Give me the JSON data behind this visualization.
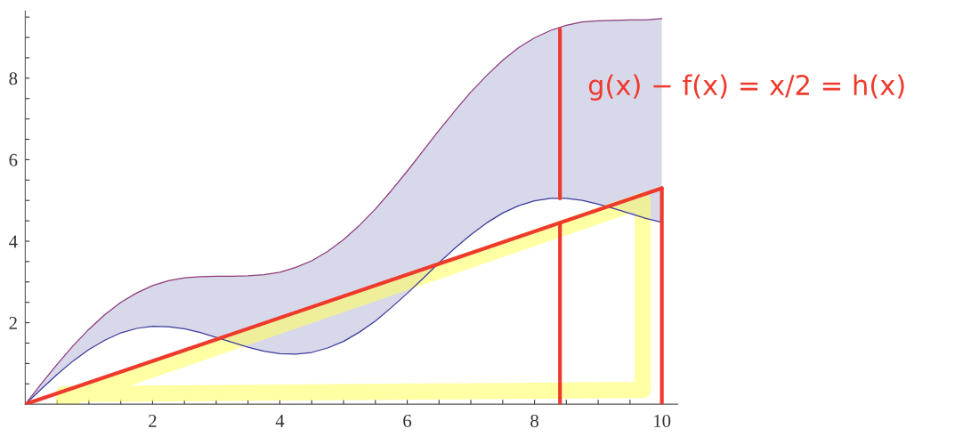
{
  "chart_data": {
    "type": "line",
    "x": [
      0,
      0.25,
      0.5,
      0.75,
      1,
      1.25,
      1.5,
      1.75,
      2,
      2.25,
      2.5,
      2.75,
      3,
      3.25,
      3.5,
      3.75,
      4,
      4.25,
      4.5,
      4.75,
      5,
      5.25,
      5.5,
      5.75,
      6,
      6.25,
      6.5,
      6.75,
      7,
      7.25,
      7.5,
      7.75,
      8,
      8.25,
      8.5,
      8.75,
      9,
      9.25,
      9.5,
      9.75,
      10
    ],
    "series": [
      {
        "type": "line",
        "color": "#3b3b9c",
        "values": [
          0,
          0.37,
          0.73,
          1.06,
          1.34,
          1.57,
          1.75,
          1.86,
          1.91,
          1.9,
          1.85,
          1.76,
          1.64,
          1.52,
          1.4,
          1.3,
          1.24,
          1.23,
          1.27,
          1.38,
          1.54,
          1.77,
          2.04,
          2.37,
          2.72,
          3.09,
          3.47,
          3.83,
          4.16,
          4.45,
          4.69,
          4.87,
          4.99,
          5.05,
          5.05,
          5.0,
          4.91,
          4.8,
          4.68,
          4.56,
          4.46
        ],
        "lower": [
          0,
          0.37,
          0.73,
          1.06,
          1.34,
          1.57,
          1.75,
          1.86,
          1.91,
          1.9,
          1.85,
          1.76,
          1.64,
          1.52,
          1.4,
          1.3,
          1.24,
          1.23,
          1.27,
          1.38,
          1.54,
          1.77,
          2.04,
          2.37,
          2.72,
          3.09,
          3.47,
          3.83,
          4.16,
          4.45,
          4.69,
          4.87,
          4.99,
          5.05,
          5.05,
          5.0,
          4.91,
          4.8,
          4.68,
          4.56,
          4.46
        ],
        "upper": [
          0,
          0.5,
          0.98,
          1.43,
          1.84,
          2.2,
          2.5,
          2.73,
          2.91,
          3.03,
          3.1,
          3.13,
          3.14,
          3.14,
          3.15,
          3.18,
          3.24,
          3.36,
          3.52,
          3.75,
          4.04,
          4.39,
          4.79,
          5.24,
          5.72,
          6.22,
          6.72,
          7.2,
          7.66,
          8.07,
          8.44,
          8.75,
          8.99,
          9.17,
          9.3,
          9.38,
          9.41,
          9.42,
          9.43,
          9.43,
          9.46
        ]
      },
      {
        "type": "line",
        "color": "#8e3b78",
        "values": [
          0,
          0.5,
          0.98,
          1.43,
          1.84,
          2.2,
          2.5,
          2.73,
          2.91,
          3.03,
          3.1,
          3.13,
          3.14,
          3.14,
          3.15,
          3.18,
          3.24,
          3.36,
          3.52,
          3.75,
          4.04,
          4.39,
          4.79,
          5.24,
          5.72,
          6.22,
          6.72,
          7.2,
          7.66,
          8.07,
          8.44,
          8.75,
          8.99,
          9.17,
          9.3,
          9.38,
          9.41,
          9.42,
          9.43,
          9.43,
          9.46
        ]
      },
      {
        "color": "#ffff66",
        "x": [
          0.6,
          9.7,
          9.7,
          0.6
        ],
        "values": [
          0.1,
          5.0,
          0.35,
          0.25
        ]
      },
      {
        "type": "line",
        "color": "#ee3a2c",
        "x": [
          0,
          10
        ],
        "values": [
          0,
          5.3
        ]
      },
      {
        "type": "line",
        "color": "#ee3a2c",
        "x": [
          8.4,
          8.4
        ],
        "values": [
          5.05,
          9.2
        ]
      },
      {
        "type": "line",
        "color": "#ee3a2c",
        "x": [
          8.4,
          8.4
        ],
        "values": [
          0,
          4.45
        ]
      },
      {
        "type": "line",
        "color": "#ee3a2c",
        "x": [
          10,
          10
        ],
        "values": [
          0,
          5.3
        ]
      }
    ],
    "xlim": [
      0,
      10.25
    ],
    "ylim": [
      0,
      9.65
    ],
    "xticks": [
      {
        "value": 0.5,
        "label": null
      },
      {
        "value": 1,
        "label": null
      },
      {
        "value": 1.5,
        "label": null
      },
      2,
      {
        "value": 2.5,
        "label": null
      },
      {
        "value": 3,
        "label": null
      },
      {
        "value": 3.5,
        "label": null
      },
      4,
      {
        "value": 4.5,
        "label": null
      },
      {
        "value": 5,
        "label": null
      },
      {
        "value": 5.5,
        "label": null
      },
      6,
      {
        "value": 6.5,
        "label": null
      },
      {
        "value": 7,
        "label": null
      },
      {
        "value": 7.5,
        "label": null
      },
      8,
      {
        "value": 8.5,
        "label": null
      },
      {
        "value": 9,
        "label": null
      },
      {
        "value": 9.5,
        "label": null
      },
      10
    ],
    "yticks": [
      {
        "value": 0.5,
        "label": null
      },
      {
        "value": 1,
        "label": null
      },
      {
        "value": 1.5,
        "label": null
      },
      2,
      {
        "value": 2.5,
        "label": null
      },
      {
        "value": 3,
        "label": null
      },
      {
        "value": 3.5,
        "label": null
      },
      4,
      {
        "value": 4.5,
        "label": null
      },
      {
        "value": 5,
        "label": null
      },
      {
        "value": 5.5,
        "label": null
      },
      6,
      {
        "value": 6.5,
        "label": null
      },
      {
        "value": 7,
        "label": null
      },
      {
        "value": 7.5,
        "label": null
      },
      8,
      {
        "value": 8.5,
        "label": null
      },
      {
        "value": 9,
        "label": null
      },
      {
        "value": 9.5,
        "label": null
      }
    ],
    "annotations": [
      "g(x) − f(x) = x/2 = h(x)"
    ],
    "grid": false,
    "legend": false
  }
}
